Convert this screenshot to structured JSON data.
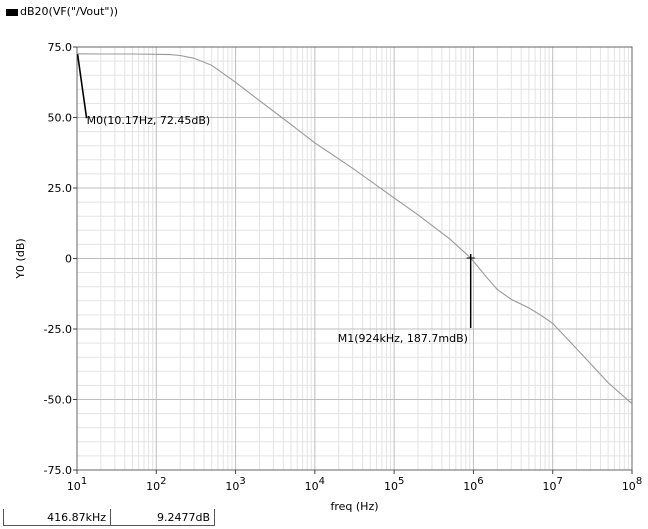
{
  "legend": {
    "label": "dB20(VF(\"/Vout\"))",
    "color": "#000000"
  },
  "readout": {
    "x_value": "416.87kHz",
    "y_value": "9.2477dB"
  },
  "markers": [
    {
      "id": "M0",
      "label": "M0(10.17Hz, 72.45dB)",
      "x": 10.17,
      "y": 72.45
    },
    {
      "id": "M1",
      "label": "M1(924kHz, 187.7mdB)",
      "x": 924000,
      "y": 0.1877
    }
  ],
  "chart_data": {
    "type": "line",
    "title": "",
    "xlabel": "freq (Hz)",
    "ylabel": "Y0 (dB)",
    "x_scale": "log",
    "xlim": [
      10,
      100000000
    ],
    "ylim": [
      -75,
      75
    ],
    "grid": true,
    "x_ticks": [
      {
        "value": 10,
        "base": "10",
        "exp": "1"
      },
      {
        "value": 100,
        "base": "10",
        "exp": "2"
      },
      {
        "value": 1000,
        "base": "10",
        "exp": "3"
      },
      {
        "value": 10000,
        "base": "10",
        "exp": "4"
      },
      {
        "value": 100000,
        "base": "10",
        "exp": "5"
      },
      {
        "value": 1000000,
        "base": "10",
        "exp": "6"
      },
      {
        "value": 10000000,
        "base": "10",
        "exp": "7"
      },
      {
        "value": 100000000,
        "base": "10",
        "exp": "8"
      }
    ],
    "y_ticks": [
      {
        "value": 75,
        "label": "75.0"
      },
      {
        "value": 50,
        "label": "50.0"
      },
      {
        "value": 25,
        "label": "25.0"
      },
      {
        "value": 0,
        "label": "0"
      },
      {
        "value": -25,
        "label": "-25.0"
      },
      {
        "value": -50,
        "label": "-50.0"
      },
      {
        "value": -75,
        "label": "-75.0"
      }
    ],
    "series": [
      {
        "name": "dB20(VF(\"/Vout\"))",
        "color": "#999999",
        "x": [
          10,
          20,
          50,
          100,
          150,
          200,
          300,
          500,
          1000,
          2000,
          5000,
          10000,
          30000,
          100000,
          200000,
          500000,
          924000,
          1500000,
          2000000,
          3000000,
          5000000,
          7000000,
          10000000,
          20000000,
          50000000,
          100000000
        ],
        "y": [
          72.6,
          72.5,
          72.5,
          72.4,
          72.3,
          72.0,
          71.0,
          68.5,
          62.5,
          56.0,
          47.5,
          41.0,
          32.0,
          21.5,
          15.5,
          7.0,
          0.19,
          -7.0,
          -11.0,
          -14.5,
          -17.5,
          -20.0,
          -23.0,
          -32.0,
          -44.0,
          -51.5
        ]
      }
    ]
  }
}
